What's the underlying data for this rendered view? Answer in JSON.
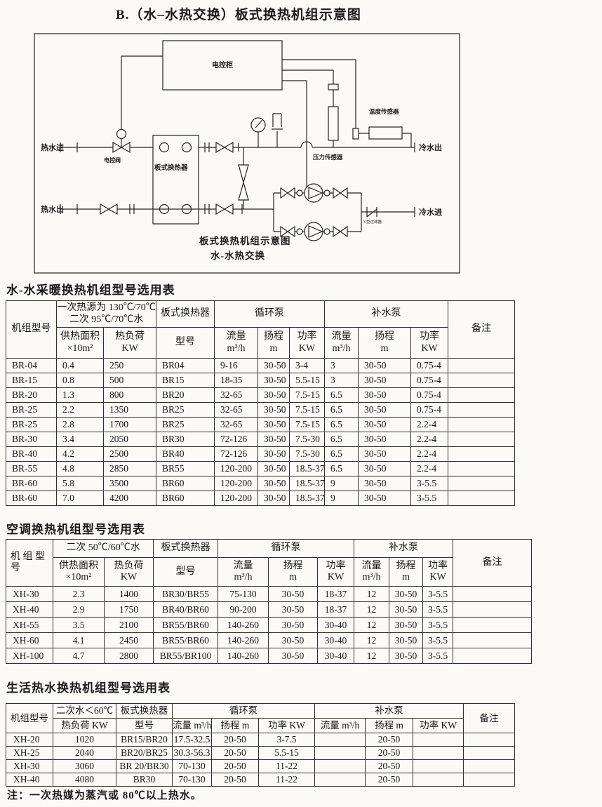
{
  "page": {
    "title": "B.（水–水热交换）板式换热机组示意图",
    "footnote": "注：一次热媒为蒸汽或 80℃以上热水。"
  },
  "diagram": {
    "labels": {
      "control_cabinet": "电控柜",
      "hot_water_in": "热水进",
      "hot_water_out": "热水出",
      "cold_water_out": "冷水出",
      "cold_water_in": "冷水进",
      "electric_valve": "电控阀",
      "plate_heat_exchanger": "板式换热器",
      "pressure_sensor": "压力传感器",
      "temperature_sensor": "温度传感器",
      "y_filter": "Y型过滤器",
      "caption_line1": "板式换热机组示意图",
      "caption_line2": "水-水热交换"
    }
  },
  "cols": {
    "circ_pump": "循环泵",
    "makeup_pump": "补水泵",
    "remark": "备注",
    "phe": "板式换热器",
    "model": "型号",
    "area_l1": "供热面积",
    "area_l2": "×10m²",
    "load_l1": "热负荷",
    "load_l2": "KW",
    "flow_l1": "流量",
    "flow_l2": "m³/h",
    "head_l1": "扬程",
    "head_l2": "m",
    "power_l1": "功率",
    "power_l2": "KW"
  },
  "table1": {
    "title": "水-水采暖换热机组型号选用表",
    "unit_model": "机组型号",
    "cond_l1": "一次热源为 130℃/70℃",
    "cond_l2": "二次 95℃/70℃水",
    "rows": [
      [
        "BR-04",
        "0.4",
        "250",
        "BR04",
        "9-16",
        "30-50",
        "3-4",
        "3",
        "30-50",
        "0.75-4",
        ""
      ],
      [
        "BR-15",
        "0.8",
        "500",
        "BR15",
        "18-35",
        "30-50",
        "5.5-15",
        "3",
        "30-50",
        "0.75-4",
        ""
      ],
      [
        "BR-20",
        "1.3",
        "800",
        "BR20",
        "32-65",
        "30-50",
        "7.5-15",
        "6.5",
        "30-50",
        "0.75-4",
        ""
      ],
      [
        "BR-25",
        "2.2",
        "1350",
        "BR25",
        "32-65",
        "30-50",
        "7.5-15",
        "6.5",
        "30-50",
        "0.75-4",
        ""
      ],
      [
        "BR-25",
        "2.8",
        "1700",
        "BR25",
        "32-65",
        "30-50",
        "7.5-15",
        "6.5",
        "30-50",
        "2.2-4",
        ""
      ],
      [
        "BR-30",
        "3.4",
        "2050",
        "BR30",
        "72-126",
        "30-50",
        "7.5-30",
        "6.5",
        "30-50",
        "2.2-4",
        ""
      ],
      [
        "BR-40",
        "4.2",
        "2500",
        "BR40",
        "72-126",
        "30-50",
        "7.5-30",
        "6.5",
        "30-50",
        "2.2-4",
        ""
      ],
      [
        "BR-55",
        "4.8",
        "2850",
        "BR55",
        "120-200",
        "30-50",
        "18.5-37",
        "6.5",
        "30-50",
        "2.2-4",
        ""
      ],
      [
        "BR-60",
        "5.8",
        "3500",
        "BR60",
        "120-200",
        "30-50",
        "18.5-37",
        "9",
        "30-50",
        "3-5.5",
        ""
      ],
      [
        "BR-60",
        "7.0",
        "4200",
        "BR60",
        "120-200",
        "30-50",
        "18.5-37",
        "9",
        "30-50",
        "3-5.5",
        ""
      ]
    ]
  },
  "table2": {
    "title": "空调换热机组型号选用表",
    "unit_l1": "机 组 型",
    "unit_l2": "号",
    "cond": "二次 50℃/60℃水",
    "rows": [
      [
        "XH-30",
        "2.3",
        "1400",
        "BR30/BR55",
        "75-130",
        "30-50",
        "18-37",
        "12",
        "30-50",
        "3-5.5",
        ""
      ],
      [
        "XH-40",
        "2.9",
        "1750",
        "BR40/BR60",
        "90-200",
        "30-50",
        "18-37",
        "12",
        "30-50",
        "3-5.5",
        ""
      ],
      [
        "XH-55",
        "3.5",
        "2100",
        "BR55/BR60",
        "140-260",
        "30-50",
        "30-40",
        "12",
        "30-50",
        "3-5.5",
        ""
      ],
      [
        "XH-60",
        "4.1",
        "2450",
        "BR55/BR60",
        "140-260",
        "30-50",
        "30-40",
        "12",
        "30-50",
        "3-5.5",
        ""
      ],
      [
        "XH-100",
        "4.7",
        "2800",
        "BR55/BR100",
        "140-260",
        "30-50",
        "30-40",
        "12",
        "30-50",
        "3-5.5",
        ""
      ]
    ]
  },
  "table3": {
    "title": "生活热水换热机组型号选用表",
    "unit_model": "机组型号",
    "cond": "二次水＜60℃",
    "load": "热负荷 KW",
    "model": "型号",
    "flow": "流量 m³/h",
    "head": "扬程 m",
    "power": "功率 KW",
    "rows": [
      [
        "XH-20",
        "1020",
        "BR15/BR20",
        "17.5-32.5",
        "20-50",
        "3-7.5",
        "",
        "20-50",
        "",
        ""
      ],
      [
        "XH-25",
        "2040",
        "BR20/BR25",
        "30.3-56.3",
        "20-50",
        "5.5-15",
        "",
        "20-50",
        "",
        ""
      ],
      [
        "XH-30",
        "3060",
        "BR 20/BR30",
        "70-130",
        "20-50",
        "11-22",
        "",
        "20-50",
        "",
        ""
      ],
      [
        "XH-40",
        "4080",
        "BR30",
        "70-130",
        "20-50",
        "11-22",
        "",
        "20-50",
        "",
        ""
      ]
    ]
  }
}
